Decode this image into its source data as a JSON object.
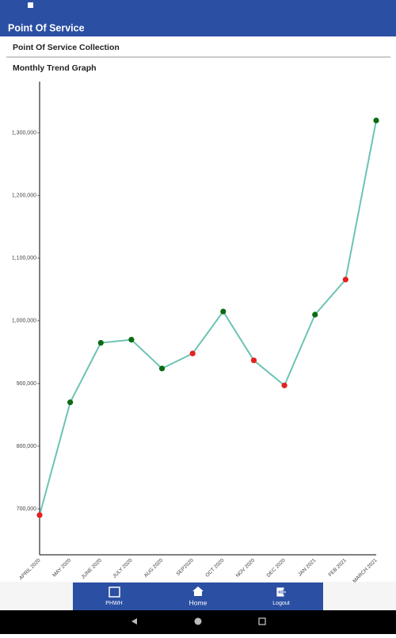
{
  "header": {
    "title": "Point Of Service"
  },
  "subheader": "Point Of Service Collection",
  "section_title": "Monthly Trend Graph",
  "chart_data": {
    "type": "line",
    "categories": [
      "APRIL 2020",
      "MAY 2020",
      "JUNE 2020",
      "JULY 2020",
      "AUG 2020",
      "SEP2020",
      "OCT 2020",
      "NOV 2020",
      "DEC 2020",
      "JAN 2021",
      "FEB 2021",
      "MARCH 2021"
    ],
    "series": [
      {
        "color": "#6cc3b3",
        "values": [
          690000,
          870000,
          965000,
          970000,
          924000,
          948000,
          1015000,
          937000,
          897000,
          1010000,
          1066000,
          1320000
        ],
        "point_colors": [
          "#e52020",
          "#0a6b12",
          "#0a6b12",
          "#0a6b12",
          "#0a6b12",
          "#e52020",
          "#0a6b12",
          "#e52020",
          "#e52020",
          "#0a6b12",
          "#e52020",
          "#0a6b12"
        ]
      }
    ],
    "ylim": [
      626600,
      1382000
    ],
    "yticks": [
      {
        "value": 700000,
        "label": "700,000"
      },
      {
        "value": 800000,
        "label": "800,000"
      },
      {
        "value": 900000,
        "label": "900,000"
      },
      {
        "value": 1000000,
        "label": "1,000,000"
      },
      {
        "value": 1100000,
        "label": "1,100,000"
      },
      {
        "value": 1200000,
        "label": "1,200,000"
      },
      {
        "value": 1300000,
        "label": "1,300,000"
      }
    ],
    "grid": false
  },
  "nav": {
    "items": [
      "PHWH",
      "Home",
      "Logout"
    ]
  }
}
